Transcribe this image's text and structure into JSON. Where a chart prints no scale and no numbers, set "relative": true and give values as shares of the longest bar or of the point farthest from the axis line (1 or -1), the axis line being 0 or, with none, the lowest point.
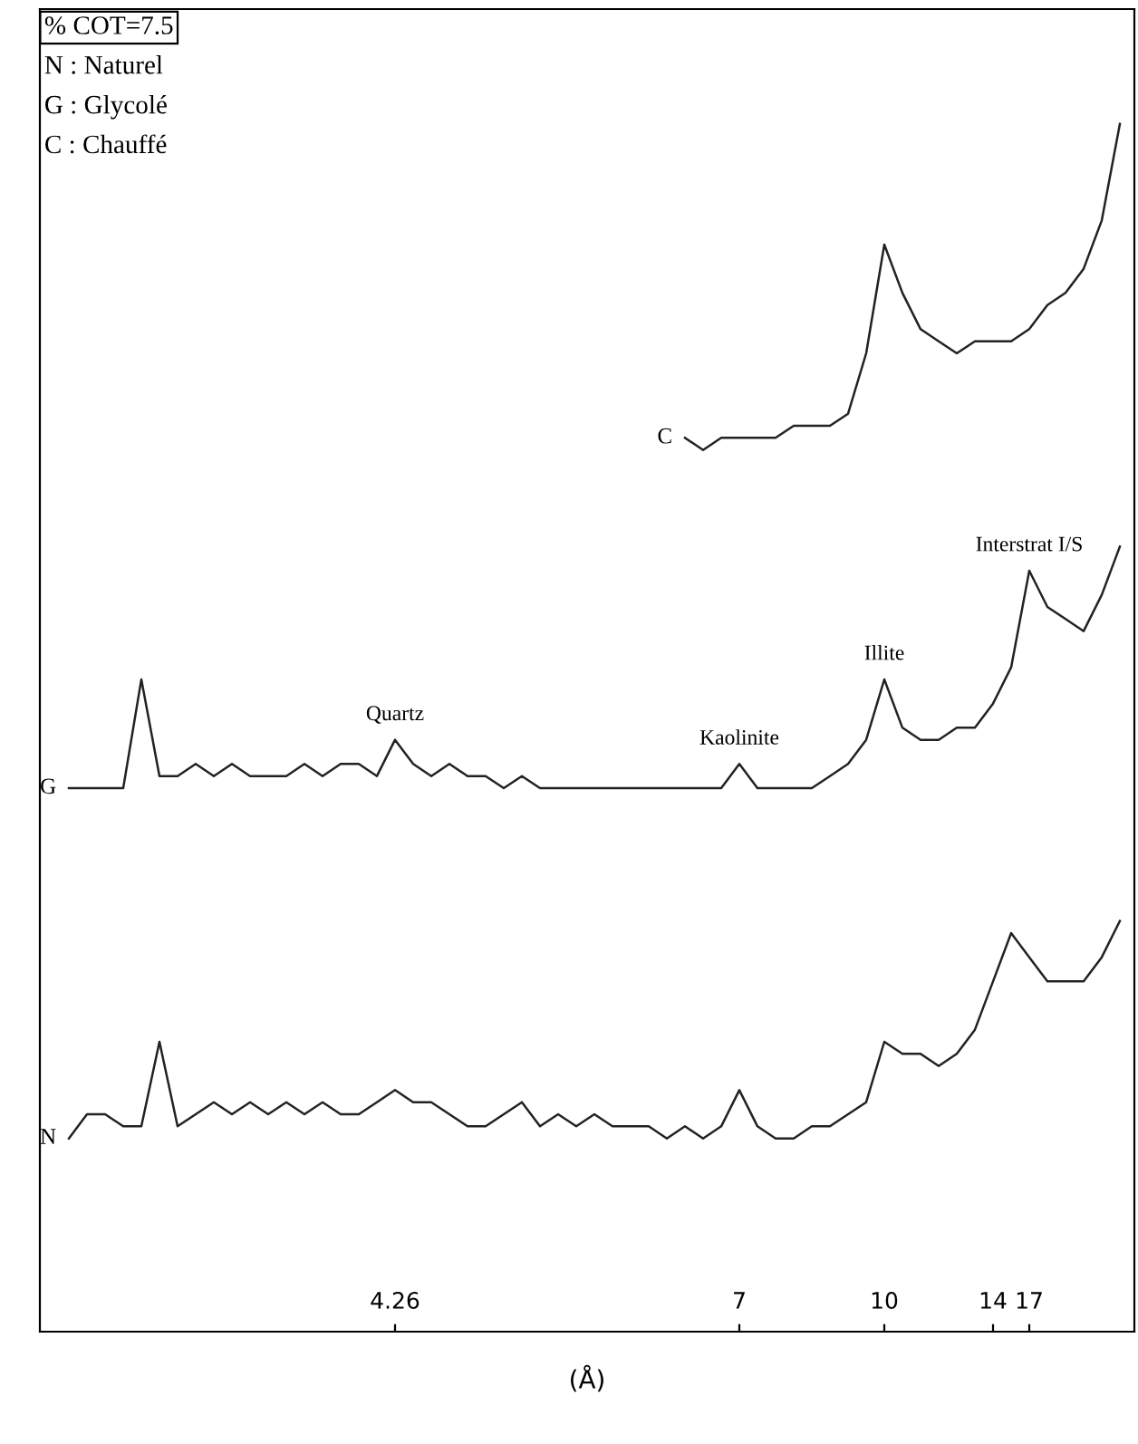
{
  "chart_data": {
    "type": "line",
    "relative": true,
    "xlabel": "(Å)",
    "tick_labels": "x",
    "legend": false,
    "grid": false,
    "marker": "none",
    "line_style": "solid",
    "categories": [
      null,
      null,
      null,
      null,
      null,
      null,
      null,
      null,
      null,
      null,
      null,
      null,
      null,
      null,
      null,
      null,
      null,
      null,
      "4.26",
      null,
      null,
      null,
      null,
      null,
      null,
      null,
      null,
      null,
      null,
      null,
      null,
      null,
      null,
      null,
      null,
      null,
      null,
      "7",
      null,
      null,
      null,
      null,
      null,
      null,
      null,
      "10",
      null,
      null,
      null,
      null,
      null,
      "14",
      null,
      "17",
      null,
      null,
      null,
      null,
      null
    ],
    "annotations": [
      "% COT=7.5",
      "N : Naturel",
      "G : Glycolé",
      "C : Chauffé",
      {
        "text": "Quartz",
        "x": "4.26",
        "y": 0.49
      },
      {
        "text": "Kaolinite",
        "x": "7",
        "y": 0.47
      },
      {
        "text": "Illite",
        "x": "10",
        "y": 0.54
      },
      {
        "text": "Interstrat I/S",
        "x": "17",
        "y": 0.63
      }
    ],
    "series": [
      {
        "name": "C",
        "color": "#222222",
        "values": [
          null,
          null,
          null,
          null,
          null,
          null,
          null,
          null,
          null,
          null,
          null,
          null,
          null,
          null,
          null,
          null,
          null,
          null,
          null,
          null,
          null,
          null,
          null,
          null,
          null,
          null,
          null,
          null,
          null,
          null,
          null,
          null,
          null,
          null,
          0.74,
          0.73,
          0.74,
          0.74,
          0.74,
          0.74,
          0.75,
          0.75,
          0.75,
          0.76,
          0.81,
          0.9,
          0.86,
          0.83,
          0.82,
          0.81,
          0.82,
          0.82,
          0.82,
          0.83,
          0.85,
          0.86,
          0.88,
          0.92,
          1.0
        ]
      },
      {
        "name": "G",
        "color": "#222222",
        "values": [
          0.45,
          0.45,
          0.45,
          0.45,
          0.54,
          0.46,
          0.46,
          0.47,
          0.46,
          0.47,
          0.46,
          0.46,
          0.46,
          0.47,
          0.46,
          0.47,
          0.47,
          0.46,
          0.49,
          0.47,
          0.46,
          0.47,
          0.46,
          0.46,
          0.45,
          0.46,
          0.45,
          0.45,
          0.45,
          0.45,
          0.45,
          0.45,
          0.45,
          0.45,
          0.45,
          0.45,
          0.45,
          0.47,
          0.45,
          0.45,
          0.45,
          0.45,
          0.46,
          0.47,
          0.49,
          0.54,
          0.5,
          0.49,
          0.49,
          0.5,
          0.5,
          0.52,
          0.55,
          0.63,
          0.6,
          0.59,
          0.58,
          0.61,
          0.65
        ]
      },
      {
        "name": "N",
        "color": "#222222",
        "values": [
          0.16,
          0.18,
          0.18,
          0.17,
          0.17,
          0.24,
          0.17,
          0.18,
          0.19,
          0.18,
          0.19,
          0.18,
          0.19,
          0.18,
          0.19,
          0.18,
          0.18,
          0.19,
          0.2,
          0.19,
          0.19,
          0.18,
          0.17,
          0.17,
          0.18,
          0.19,
          0.17,
          0.18,
          0.17,
          0.18,
          0.17,
          0.17,
          0.17,
          0.16,
          0.17,
          0.16,
          0.17,
          0.2,
          0.17,
          0.16,
          0.16,
          0.17,
          0.17,
          0.18,
          0.19,
          0.24,
          0.23,
          0.23,
          0.22,
          0.23,
          0.25,
          0.29,
          0.33,
          0.31,
          0.29,
          0.29,
          0.29,
          0.31,
          0.34
        ]
      }
    ]
  }
}
